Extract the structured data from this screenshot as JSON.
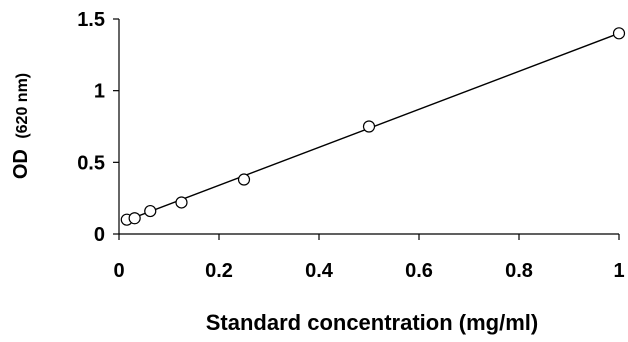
{
  "chart_data": {
    "type": "scatter",
    "title": "",
    "xlabel": "Standard concentration (mg/ml)",
    "ylabel_main": "OD",
    "ylabel_unit": "(620 nm)",
    "xlim": [
      0,
      1
    ],
    "ylim": [
      0,
      1.5
    ],
    "x_ticks": [
      0,
      0.2,
      0.4,
      0.6,
      0.8,
      1
    ],
    "x_tick_labels": [
      "0",
      "0.2",
      "0.4",
      "0.6",
      "0.8",
      "1"
    ],
    "y_ticks": [
      0,
      0.5,
      1,
      1.5
    ],
    "y_tick_labels": [
      "0",
      "0.5",
      "1",
      "1.5"
    ],
    "grid": false,
    "legend": "none",
    "marker": "open-circle",
    "colors": {
      "marker": "#000000",
      "line": "#000000",
      "axis": "#000000"
    },
    "series": [
      {
        "x": [
          0.0156,
          0.0313,
          0.0625,
          0.125,
          0.25,
          0.5,
          1.0
        ],
        "y": [
          0.1,
          0.11,
          0.16,
          0.22,
          0.38,
          0.75,
          1.4
        ]
      }
    ],
    "trendline": {
      "type": "linear",
      "x": [
        0.0156,
        1.0
      ],
      "y": [
        0.095,
        1.4
      ]
    }
  }
}
